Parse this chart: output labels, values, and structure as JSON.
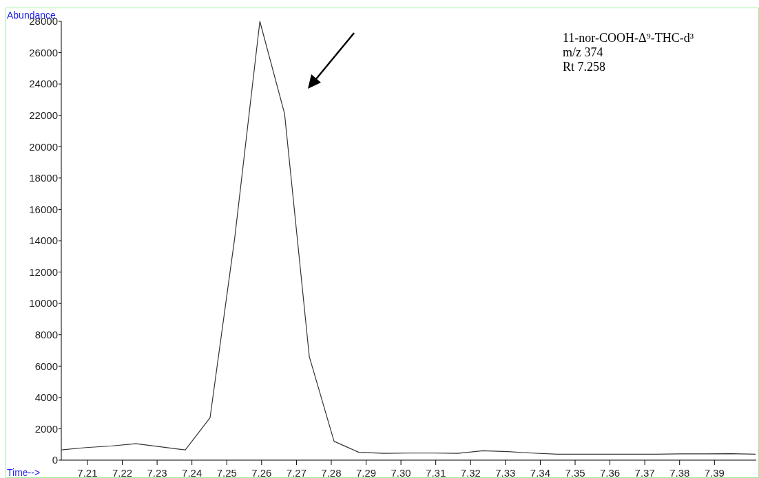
{
  "chart_data": {
    "type": "line",
    "xlabel": "Time-->",
    "ylabel": "Abundance",
    "annotations": [
      "11-nor-COOH-Δ⁹-THC-d³",
      "m/z 374",
      "Rt 7.258"
    ],
    "x": [
      7.2025,
      7.2096,
      7.2167,
      7.2239,
      7.231,
      7.2381,
      7.2452,
      7.2523,
      7.2595,
      7.2666,
      7.2737,
      7.2808,
      7.2879,
      7.2951,
      7.3022,
      7.3093,
      7.3164,
      7.3235,
      7.3306,
      7.3377,
      7.3449,
      7.352,
      7.3591,
      7.3662,
      7.3733,
      7.3804,
      7.3876,
      7.3947,
      7.4018
    ],
    "series": [
      {
        "color": "#333333",
        "values": [
          650,
          800,
          900,
          1050,
          850,
          650,
          2700,
          14200,
          28000,
          22100,
          6600,
          1200,
          500,
          430,
          450,
          450,
          430,
          600,
          540,
          450,
          380,
          380,
          380,
          380,
          380,
          400,
          400,
          410,
          380
        ]
      }
    ],
    "xlim": [
      7.2025,
      7.402
    ],
    "ylim": [
      0,
      28000
    ],
    "xticks": [
      7.21,
      7.22,
      7.23,
      7.24,
      7.25,
      7.26,
      7.27,
      7.28,
      7.29,
      {
        "value": 7.3,
        "label": "7.30"
      },
      7.31,
      7.32,
      7.33,
      7.34,
      7.35,
      7.36,
      7.37,
      7.38,
      7.39
    ],
    "yticks": [
      0,
      2000,
      4000,
      6000,
      8000,
      10000,
      12000,
      14000,
      16000,
      18000,
      20000,
      22000,
      24000,
      26000,
      28000
    ],
    "grid": false,
    "marker": "none",
    "line_style": "solid"
  }
}
